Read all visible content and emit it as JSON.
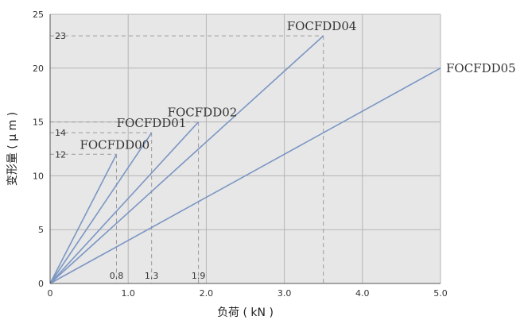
{
  "chart_data": {
    "type": "line",
    "title": "",
    "xlabel": "负荷 ( kN )",
    "ylabel": "变形量 ( μ m )",
    "xlim": [
      0,
      5.0
    ],
    "ylim": [
      0,
      25
    ],
    "x_ticks": [
      "0",
      "1.0",
      "2.0",
      "3.0",
      "4.0",
      "5.0"
    ],
    "y_ticks": [
      "0",
      "5",
      "10",
      "15",
      "20",
      "25"
    ],
    "grid": true,
    "colors": {
      "line": "#7b96c4",
      "grid": "#b5b5b5",
      "plot_background": "#e7e7e7",
      "guide": "#9a9a9a",
      "axis": "#555555"
    },
    "series": [
      {
        "name": "FOCFDD00",
        "x": [
          0,
          0.85
        ],
        "y": [
          0,
          12
        ]
      },
      {
        "name": "FOCFDD01",
        "x": [
          0,
          1.3
        ],
        "y": [
          0,
          14
        ]
      },
      {
        "name": "FOCFDD02",
        "x": [
          0,
          1.9
        ],
        "y": [
          0,
          15
        ]
      },
      {
        "name": "FOCFDD04",
        "x": [
          0,
          3.5
        ],
        "y": [
          0,
          23
        ]
      },
      {
        "name": "FOCFDD05",
        "x": [
          0,
          5.0
        ],
        "y": [
          0,
          20
        ]
      }
    ],
    "guide_markers": [
      {
        "x": 0.85,
        "y": 12,
        "x_label": "0.8",
        "y_label": "12"
      },
      {
        "x": 1.3,
        "y": 14,
        "x_label": "1.3",
        "y_label": "14"
      },
      {
        "x": 1.9,
        "y": 15,
        "x_label": "1.9",
        "y_label": ""
      },
      {
        "x": 3.5,
        "y": 23,
        "x_label": "",
        "y_label": "23"
      }
    ]
  }
}
